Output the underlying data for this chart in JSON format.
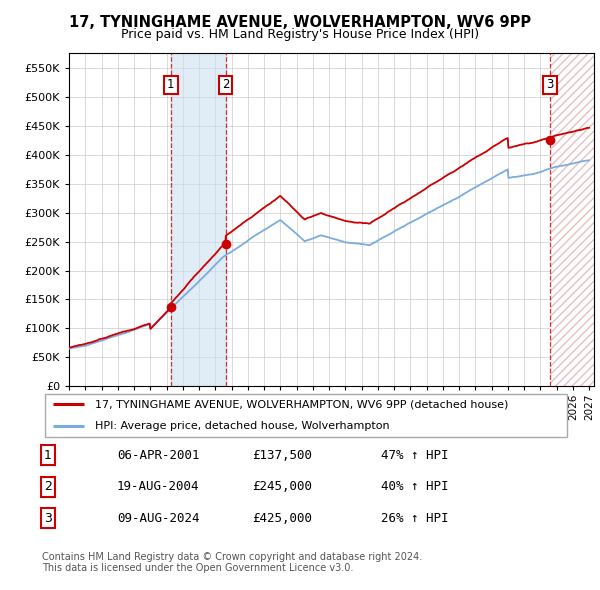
{
  "title": "17, TYNINGHAME AVENUE, WOLVERHAMPTON, WV6 9PP",
  "subtitle": "Price paid vs. HM Land Registry's House Price Index (HPI)",
  "ylim": [
    0,
    575000
  ],
  "yticks": [
    0,
    50000,
    100000,
    150000,
    200000,
    250000,
    300000,
    350000,
    400000,
    450000,
    500000,
    550000
  ],
  "xlim_start": 1995.0,
  "xlim_end": 2027.3,
  "sale_dates": [
    2001.27,
    2004.63,
    2024.6
  ],
  "sale_prices": [
    137500,
    245000,
    425000
  ],
  "sale_labels": [
    "1",
    "2",
    "3"
  ],
  "legend_red": "17, TYNINGHAME AVENUE, WOLVERHAMPTON, WV6 9PP (detached house)",
  "legend_blue": "HPI: Average price, detached house, Wolverhampton",
  "table_data": [
    [
      "1",
      "06-APR-2001",
      "£137,500",
      "47% ↑ HPI"
    ],
    [
      "2",
      "19-AUG-2004",
      "£245,000",
      "40% ↑ HPI"
    ],
    [
      "3",
      "09-AUG-2024",
      "£425,000",
      "26% ↑ HPI"
    ]
  ],
  "footnote": "Contains HM Land Registry data © Crown copyright and database right 2024.\nThis data is licensed under the Open Government Licence v3.0.",
  "red_color": "#cc0000",
  "blue_color": "#7aadde",
  "shade_color": "#cce0f0",
  "hatch_color": "#f5e0e0"
}
